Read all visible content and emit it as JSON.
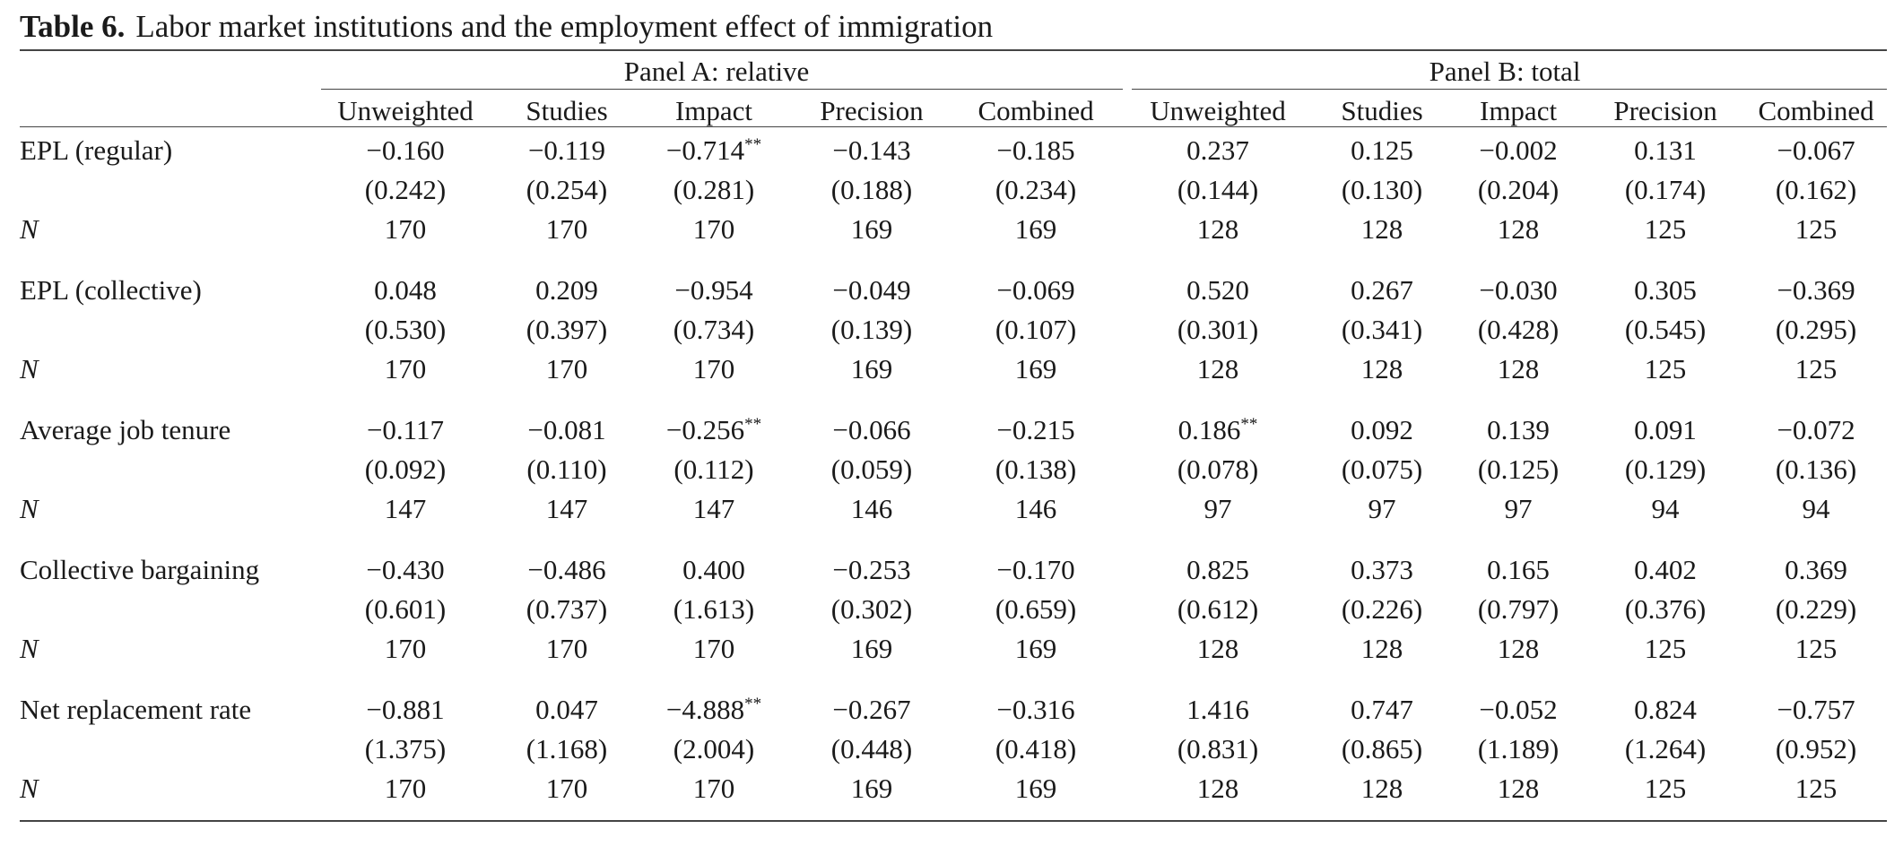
{
  "table": {
    "label": "Table 6.",
    "title": "Labor market institutions and the employment effect of immigration",
    "panels": [
      "Panel A: relative",
      "Panel B: total"
    ],
    "columns": [
      "Unweighted",
      "Studies",
      "Impact",
      "Precision",
      "Combined",
      "Unweighted",
      "Studies",
      "Impact",
      "Precision",
      "Combined"
    ],
    "n_label": "N",
    "sections": [
      {
        "label": "EPL (regular)",
        "coef": [
          {
            "v": "−0.160",
            "s": ""
          },
          {
            "v": "−0.119",
            "s": ""
          },
          {
            "v": "−0.714",
            "s": "**"
          },
          {
            "v": "−0.143",
            "s": ""
          },
          {
            "v": "−0.185",
            "s": ""
          },
          {
            "v": "0.237",
            "s": ""
          },
          {
            "v": "0.125",
            "s": ""
          },
          {
            "v": "−0.002",
            "s": ""
          },
          {
            "v": "0.131",
            "s": ""
          },
          {
            "v": "−0.067",
            "s": ""
          }
        ],
        "se": [
          "(0.242)",
          "(0.254)",
          "(0.281)",
          "(0.188)",
          "(0.234)",
          "(0.144)",
          "(0.130)",
          "(0.204)",
          "(0.174)",
          "(0.162)"
        ],
        "n": [
          "170",
          "170",
          "170",
          "169",
          "169",
          "128",
          "128",
          "128",
          "125",
          "125"
        ]
      },
      {
        "label": "EPL (collective)",
        "coef": [
          {
            "v": "0.048",
            "s": ""
          },
          {
            "v": "0.209",
            "s": ""
          },
          {
            "v": "−0.954",
            "s": ""
          },
          {
            "v": "−0.049",
            "s": ""
          },
          {
            "v": "−0.069",
            "s": ""
          },
          {
            "v": "0.520",
            "s": ""
          },
          {
            "v": "0.267",
            "s": ""
          },
          {
            "v": "−0.030",
            "s": ""
          },
          {
            "v": "0.305",
            "s": ""
          },
          {
            "v": "−0.369",
            "s": ""
          }
        ],
        "se": [
          "(0.530)",
          "(0.397)",
          "(0.734)",
          "(0.139)",
          "(0.107)",
          "(0.301)",
          "(0.341)",
          "(0.428)",
          "(0.545)",
          "(0.295)"
        ],
        "n": [
          "170",
          "170",
          "170",
          "169",
          "169",
          "128",
          "128",
          "128",
          "125",
          "125"
        ]
      },
      {
        "label": "Average job tenure",
        "coef": [
          {
            "v": "−0.117",
            "s": ""
          },
          {
            "v": "−0.081",
            "s": ""
          },
          {
            "v": "−0.256",
            "s": "**"
          },
          {
            "v": "−0.066",
            "s": ""
          },
          {
            "v": "−0.215",
            "s": ""
          },
          {
            "v": "0.186",
            "s": "**"
          },
          {
            "v": "0.092",
            "s": ""
          },
          {
            "v": "0.139",
            "s": ""
          },
          {
            "v": "0.091",
            "s": ""
          },
          {
            "v": "−0.072",
            "s": ""
          }
        ],
        "se": [
          "(0.092)",
          "(0.110)",
          "(0.112)",
          "(0.059)",
          "(0.138)",
          "(0.078)",
          "(0.075)",
          "(0.125)",
          "(0.129)",
          "(0.136)"
        ],
        "n": [
          "147",
          "147",
          "147",
          "146",
          "146",
          "97",
          "97",
          "97",
          "94",
          "94"
        ]
      },
      {
        "label": "Collective bargaining",
        "coef": [
          {
            "v": "−0.430",
            "s": ""
          },
          {
            "v": "−0.486",
            "s": ""
          },
          {
            "v": "0.400",
            "s": ""
          },
          {
            "v": "−0.253",
            "s": ""
          },
          {
            "v": "−0.170",
            "s": ""
          },
          {
            "v": "0.825",
            "s": ""
          },
          {
            "v": "0.373",
            "s": ""
          },
          {
            "v": "0.165",
            "s": ""
          },
          {
            "v": "0.402",
            "s": ""
          },
          {
            "v": "0.369",
            "s": ""
          }
        ],
        "se": [
          "(0.601)",
          "(0.737)",
          "(1.613)",
          "(0.302)",
          "(0.659)",
          "(0.612)",
          "(0.226)",
          "(0.797)",
          "(0.376)",
          "(0.229)"
        ],
        "n": [
          "170",
          "170",
          "170",
          "169",
          "169",
          "128",
          "128",
          "128",
          "125",
          "125"
        ]
      },
      {
        "label": "Net replacement rate",
        "coef": [
          {
            "v": "−0.881",
            "s": ""
          },
          {
            "v": "0.047",
            "s": ""
          },
          {
            "v": "−4.888",
            "s": "**"
          },
          {
            "v": "−0.267",
            "s": ""
          },
          {
            "v": "−0.316",
            "s": ""
          },
          {
            "v": "1.416",
            "s": ""
          },
          {
            "v": "0.747",
            "s": ""
          },
          {
            "v": "−0.052",
            "s": ""
          },
          {
            "v": "0.824",
            "s": ""
          },
          {
            "v": "−0.757",
            "s": ""
          }
        ],
        "se": [
          "(1.375)",
          "(1.168)",
          "(2.004)",
          "(0.448)",
          "(0.418)",
          "(0.831)",
          "(0.865)",
          "(1.189)",
          "(1.264)",
          "(0.952)"
        ],
        "n": [
          "170",
          "170",
          "170",
          "169",
          "169",
          "128",
          "128",
          "128",
          "125",
          "125"
        ]
      }
    ]
  }
}
